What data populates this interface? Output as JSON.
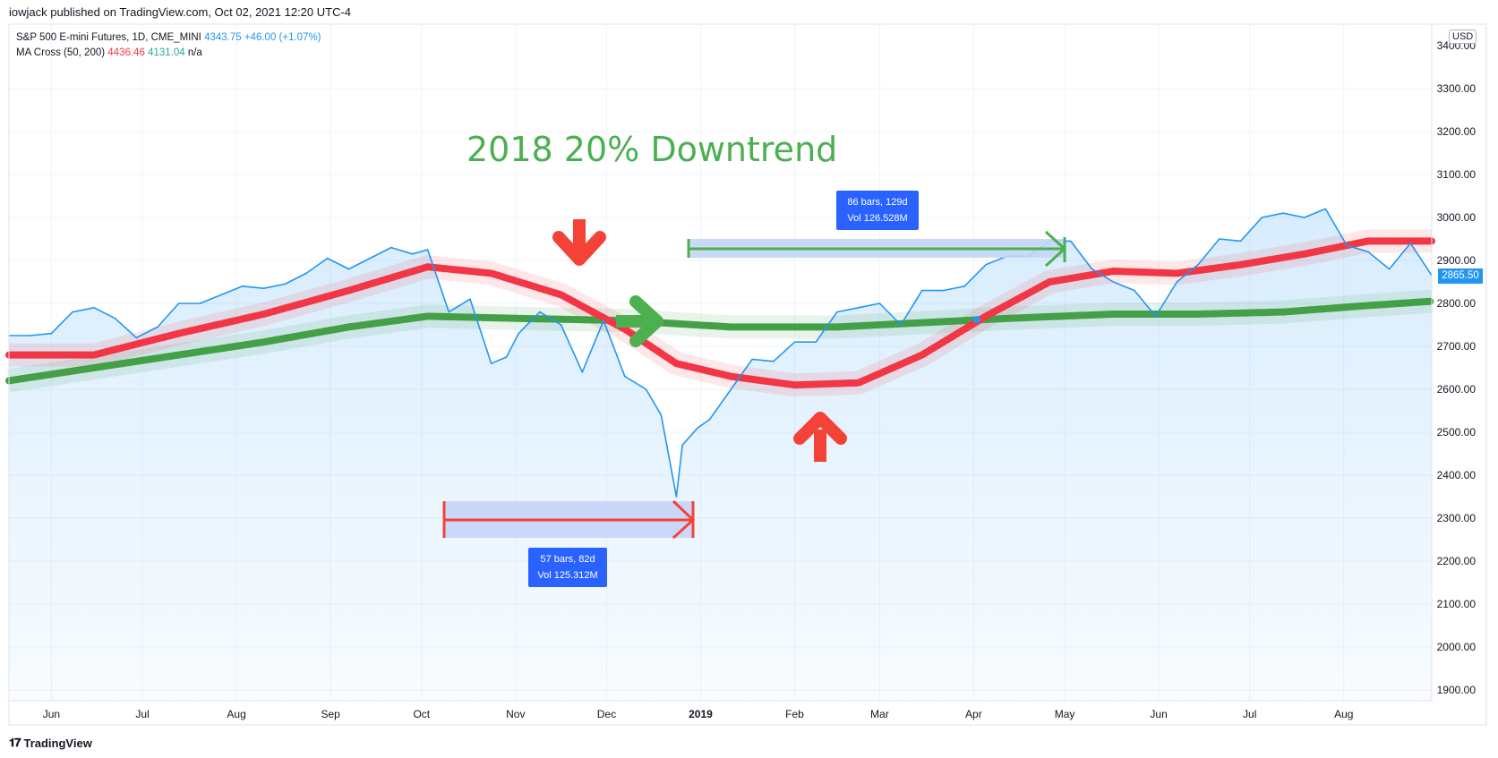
{
  "header": {
    "published": "iowjack published on TradingView.com, Oct 02, 2021 12:20 UTC-4"
  },
  "legend": {
    "symbol_line": "S&P 500 E-mini Futures, 1D, CME_MINI",
    "symbol_price": "4343.75",
    "symbol_change": "+46.00 (+1.07%)",
    "indicator_name": "MA Cross (50, 200)",
    "ma50_value": "4436.46",
    "ma200_value": "4131.04",
    "third_value": "n/a"
  },
  "currency": "USD",
  "last_price_label": "2865.50",
  "footer": {
    "brand": "TradingView"
  },
  "annotations": {
    "headline": "2018 20% Downtrend",
    "range_decline": {
      "bars": "57 bars, 82d",
      "vol": "Vol 125.312M"
    },
    "range_recovery": {
      "bars": "86 bars, 129d",
      "vol": "Vol 126.528M"
    }
  },
  "colors": {
    "price_line": "#2196f3",
    "ma50": "#f23645",
    "ma200": "#43a047",
    "annotation_green": "#4caf50",
    "annotation_red": "#f44336",
    "tooltip_bg": "#2962ff",
    "range_fill": "#c5d5f8"
  },
  "chart_data": {
    "type": "line",
    "title": "",
    "xlabel": "",
    "ylabel": "",
    "x_ticks": [
      "Jun",
      "Jul",
      "Aug",
      "Sep",
      "Oct",
      "Nov",
      "Dec",
      "2019",
      "Feb",
      "Mar",
      "Apr",
      "May",
      "Jun",
      "Jul",
      "Aug"
    ],
    "y_ticks": [
      "1900.00",
      "2000.00",
      "2100.00",
      "2200.00",
      "2300.00",
      "2400.00",
      "2500.00",
      "2600.00",
      "2700.00",
      "2800.00",
      "2900.00",
      "3000.00",
      "3100.00",
      "3200.00",
      "3300.00"
    ],
    "y_tick_partial": "3400.00",
    "ylim": [
      1875,
      3450
    ],
    "grid": true,
    "series": [
      {
        "name": "S&P 500 E-mini Futures",
        "x": [
          "2018-05-18",
          "2018-05-25",
          "2018-06-01",
          "2018-06-08",
          "2018-06-15",
          "2018-06-22",
          "2018-06-29",
          "2018-07-06",
          "2018-07-13",
          "2018-07-20",
          "2018-07-27",
          "2018-08-03",
          "2018-08-10",
          "2018-08-17",
          "2018-08-24",
          "2018-08-31",
          "2018-09-07",
          "2018-09-14",
          "2018-09-21",
          "2018-09-28",
          "2018-10-03",
          "2018-10-10",
          "2018-10-17",
          "2018-10-24",
          "2018-10-29",
          "2018-11-02",
          "2018-11-09",
          "2018-11-16",
          "2018-11-23",
          "2018-11-30",
          "2018-12-07",
          "2018-12-14",
          "2018-12-19",
          "2018-12-24",
          "2018-12-26",
          "2018-12-31",
          "2019-01-04",
          "2019-01-11",
          "2019-01-18",
          "2019-01-25",
          "2019-02-01",
          "2019-02-08",
          "2019-02-15",
          "2019-02-22",
          "2019-03-01",
          "2019-03-08",
          "2019-03-15",
          "2019-03-22",
          "2019-03-29",
          "2019-04-05",
          "2019-04-12",
          "2019-04-19",
          "2019-04-26",
          "2019-05-03",
          "2019-05-10",
          "2019-05-17",
          "2019-05-24",
          "2019-05-31",
          "2019-06-07",
          "2019-06-14",
          "2019-06-21",
          "2019-06-28",
          "2019-07-05",
          "2019-07-12",
          "2019-07-19",
          "2019-07-26",
          "2019-08-02",
          "2019-08-09",
          "2019-08-16",
          "2019-08-23",
          "2019-08-30"
        ],
        "values": [
          2725,
          2725,
          2730,
          2780,
          2790,
          2765,
          2720,
          2745,
          2800,
          2800,
          2820,
          2840,
          2835,
          2845,
          2870,
          2905,
          2880,
          2905,
          2930,
          2915,
          2925,
          2780,
          2810,
          2660,
          2675,
          2730,
          2780,
          2750,
          2640,
          2760,
          2630,
          2600,
          2540,
          2350,
          2470,
          2510,
          2530,
          2600,
          2670,
          2665,
          2710,
          2710,
          2780,
          2790,
          2800,
          2750,
          2830,
          2830,
          2840,
          2890,
          2910,
          2910,
          2945,
          2945,
          2880,
          2850,
          2830,
          2770,
          2850,
          2890,
          2950,
          2945,
          3000,
          3010,
          3000,
          3020,
          2935,
          2920,
          2880,
          2940,
          2865
        ]
      },
      {
        "name": "MA 50",
        "x": [
          "2018-05-18",
          "2018-06-15",
          "2018-07-13",
          "2018-08-10",
          "2018-09-07",
          "2018-10-03",
          "2018-10-24",
          "2018-11-16",
          "2018-12-07",
          "2018-12-24",
          "2019-01-11",
          "2019-02-01",
          "2019-02-22",
          "2019-03-15",
          "2019-04-05",
          "2019-04-26",
          "2019-05-17",
          "2019-06-07",
          "2019-06-28",
          "2019-07-19",
          "2019-08-09",
          "2019-08-30"
        ],
        "values": [
          2680,
          2680,
          2730,
          2775,
          2830,
          2885,
          2870,
          2820,
          2740,
          2660,
          2630,
          2610,
          2615,
          2680,
          2770,
          2850,
          2875,
          2870,
          2890,
          2915,
          2945,
          2945
        ]
      },
      {
        "name": "MA 200",
        "x": [
          "2018-05-18",
          "2018-06-15",
          "2018-07-13",
          "2018-08-10",
          "2018-09-07",
          "2018-10-03",
          "2018-11-02",
          "2018-12-07",
          "2019-01-11",
          "2019-02-15",
          "2019-03-15",
          "2019-04-12",
          "2019-05-17",
          "2019-06-14",
          "2019-07-12",
          "2019-08-09",
          "2019-08-30"
        ],
        "values": [
          2620,
          2650,
          2680,
          2710,
          2745,
          2770,
          2765,
          2760,
          2745,
          2745,
          2755,
          2765,
          2775,
          2775,
          2780,
          2795,
          2805
        ]
      }
    ]
  }
}
